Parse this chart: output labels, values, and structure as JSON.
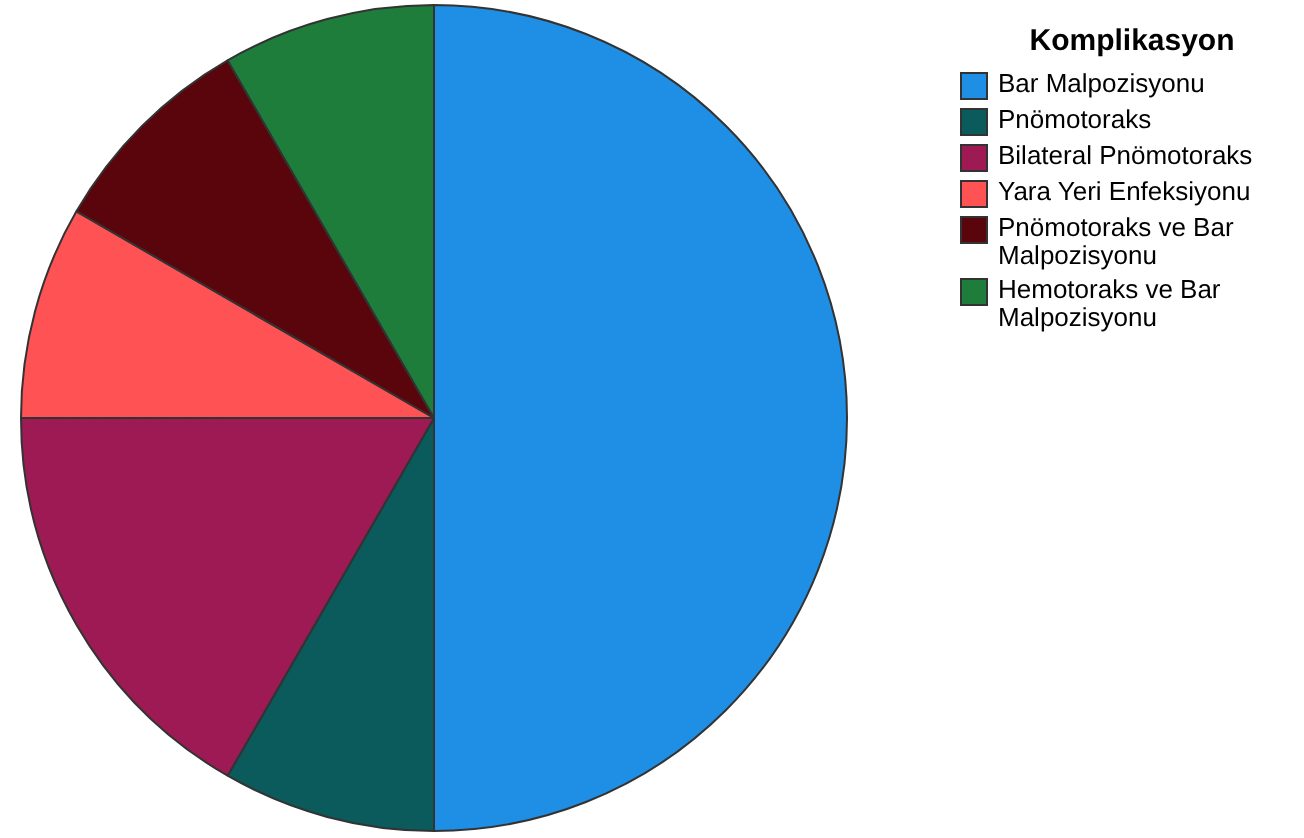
{
  "chart_data": {
    "type": "pie",
    "legend_title": "Komplikasyon",
    "legend": "right",
    "categories": [
      "Bar Malpozisyonu",
      "Pnömotoraks",
      "Bilateral Pnömotoraks",
      "Yara Yeri Enfeksiyonu",
      "Pnömotoraks ve Bar Malpozisyonu",
      "Hemotoraks ve Bar Malpozisyonu"
    ],
    "values": [
      50,
      8.33,
      16.68,
      8.33,
      8.33,
      8.33
    ],
    "colors": [
      "#1f8fe6",
      "#0b5a5c",
      "#9e1a55",
      "#ff5254",
      "#5a050c",
      "#1e7d3a"
    ]
  }
}
